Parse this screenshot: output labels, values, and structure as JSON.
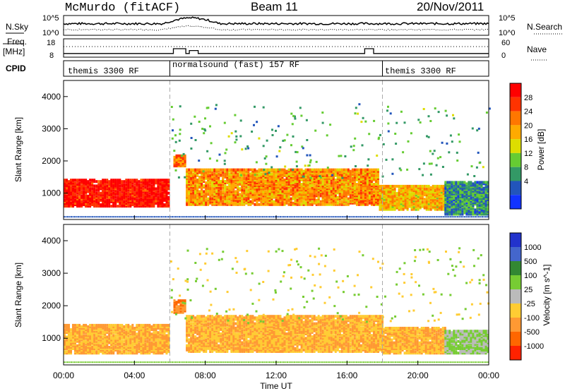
{
  "header": {
    "station": "McMurdo (fitACF)",
    "beam": "Beam 11",
    "date": "20/Nov/2011"
  },
  "noise_panel": {
    "left_label": "N.Sky",
    "right_label": "N.Search",
    "left_ticks": [
      "10^5",
      "10^0"
    ],
    "right_ticks": [
      "10^5",
      "10^0"
    ]
  },
  "freq_panel": {
    "left_label_line1": "Freq.",
    "left_label_line2": "[MHz]",
    "right_label": "Nave",
    "left_ticks": [
      "18",
      "8"
    ],
    "right_ticks": [
      "60",
      "0"
    ]
  },
  "cpid": {
    "label": "CPID",
    "segments": [
      {
        "start_hour": 0,
        "text": "themis 3300 RF"
      },
      {
        "start_hour": 6,
        "text": "normalsound (fast) 157 RF"
      },
      {
        "start_hour": 18,
        "text": "themis 3300 RF"
      }
    ]
  },
  "power_panel": {
    "ylabel": "Slant Range [km]",
    "colorbar_label": "Power [dB]",
    "colorbar_ticks": [
      "28",
      "24",
      "20",
      "16",
      "12",
      "8",
      "4"
    ],
    "colorbar_colors": [
      "#ff0000",
      "#ff3300",
      "#ff7700",
      "#ffaa00",
      "#dddd00",
      "#66cc33",
      "#339966",
      "#2255bb",
      "#1133ff"
    ]
  },
  "velocity_panel": {
    "ylabel": "Slant Range [km]",
    "colorbar_label": "Velocity [m s^-1]",
    "colorbar_ticks": [
      "1000",
      "500",
      "100",
      "25",
      "-25",
      "-100",
      "-500",
      "-1000"
    ],
    "colorbar_colors": [
      "#2233cc",
      "#4466cc",
      "#338833",
      "#77cc33",
      "#bbbbbb",
      "#ffcc33",
      "#ff9933",
      "#ff6600",
      "#ff2200"
    ]
  },
  "x_axis": {
    "label": "Time UT",
    "ticks": [
      "00:00",
      "04:00",
      "08:00",
      "12:00",
      "16:00",
      "20:00",
      "00:00"
    ]
  },
  "y_ticks": [
    "1000",
    "2000",
    "3000",
    "4000"
  ],
  "chart_data": {
    "type": "heatmap",
    "x_range_hours": [
      0,
      24
    ],
    "y_range_km": [
      180,
      4500
    ],
    "y_ticks": [
      1000,
      2000,
      3000,
      4000
    ],
    "x_ticks_hours": [
      0,
      4,
      8,
      12,
      16,
      20,
      24
    ],
    "cpid_boundaries_hours": [
      6,
      18
    ],
    "frequency_mhz": {
      "ylim": [
        8,
        18
      ]
    },
    "nave": {
      "ylim": [
        0,
        60
      ]
    },
    "power_db": {
      "cbar_range": [
        0,
        30
      ],
      "regions": [
        {
          "t0": 0.0,
          "t1": 5.9,
          "r0": 550,
          "r1": 1400,
          "level": 28
        },
        {
          "t0": 6.2,
          "t1": 6.9,
          "r0": 1800,
          "r1": 2150,
          "level": 22
        },
        {
          "t0": 6.9,
          "t1": 17.8,
          "r0": 600,
          "r1": 1700,
          "level": 20
        },
        {
          "t0": 17.8,
          "t1": 21.5,
          "r0": 450,
          "r1": 1200,
          "level": 18
        },
        {
          "t0": 21.5,
          "t1": 24.0,
          "r0": 300,
          "r1": 1300,
          "level": 8
        }
      ]
    },
    "velocity_ms": {
      "cbar_range": [
        -1000,
        1000
      ],
      "regions": [
        {
          "t0": 0.0,
          "t1": 5.9,
          "r0": 500,
          "r1": 1400,
          "value": -100
        },
        {
          "t0": 6.2,
          "t1": 6.9,
          "r0": 1750,
          "r1": 2150,
          "value": -500
        },
        {
          "t0": 6.9,
          "t1": 18.0,
          "r0": 550,
          "r1": 1650,
          "value": -100
        },
        {
          "t0": 18.0,
          "t1": 21.5,
          "r0": 500,
          "r1": 1300,
          "value": -100
        },
        {
          "t0": 21.5,
          "t1": 24.0,
          "r0": 500,
          "r1": 1200,
          "value": 25
        }
      ]
    }
  }
}
